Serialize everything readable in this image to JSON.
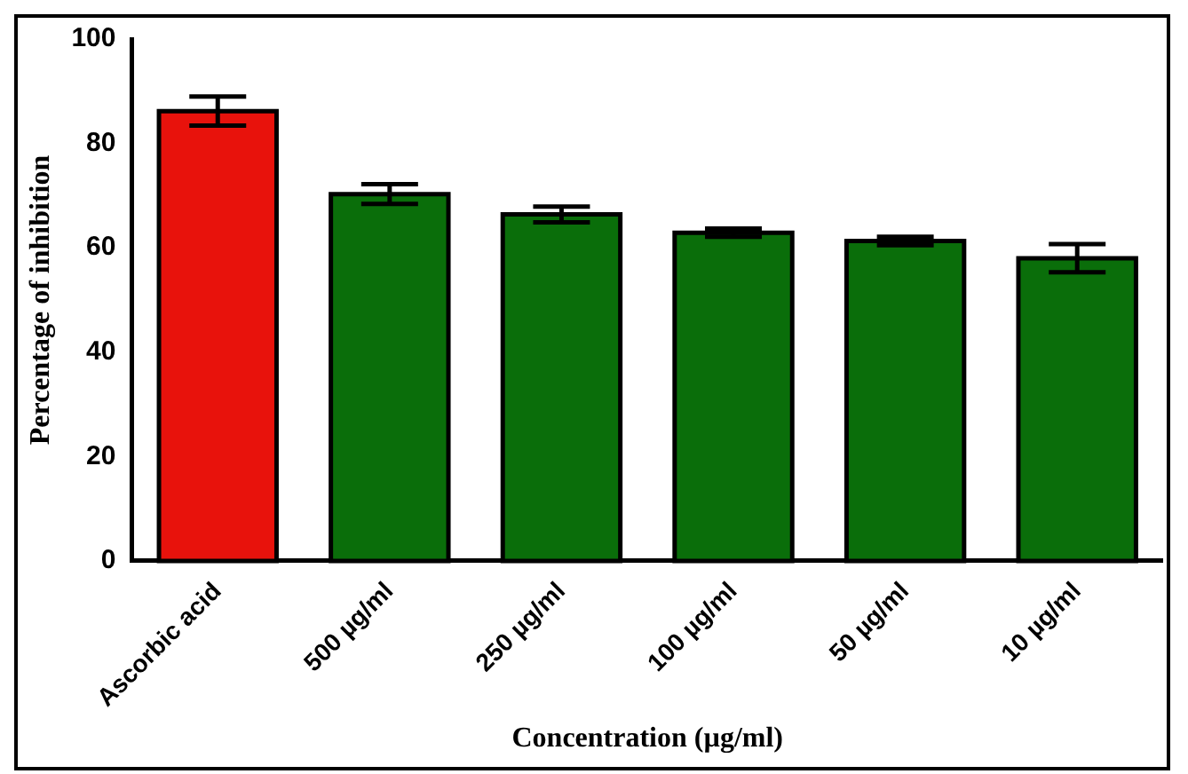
{
  "chart_data": {
    "type": "bar",
    "xlabel": "Concentration (µg/ml)",
    "ylabel": "Percentage of inhibition",
    "categories": [
      "Ascorbic acid",
      "500 µg/ml",
      "250 µg/ml",
      "100 µg/ml",
      "50 µg/ml",
      "10 µg/ml"
    ],
    "values": [
      86.2,
      70.3,
      66.4,
      62.9,
      61.3,
      58.0
    ],
    "errors": [
      2.8,
      1.9,
      1.5,
      0.8,
      0.8,
      2.7
    ],
    "colors": [
      "#e8120c",
      "#0a6e0a",
      "#0a6e0a",
      "#0a6e0a",
      "#0a6e0a",
      "#0a6e0a"
    ],
    "ylim": [
      0,
      100
    ],
    "yticks": [
      0,
      20,
      40,
      60,
      80,
      100
    ],
    "grid": false,
    "legend": false
  }
}
